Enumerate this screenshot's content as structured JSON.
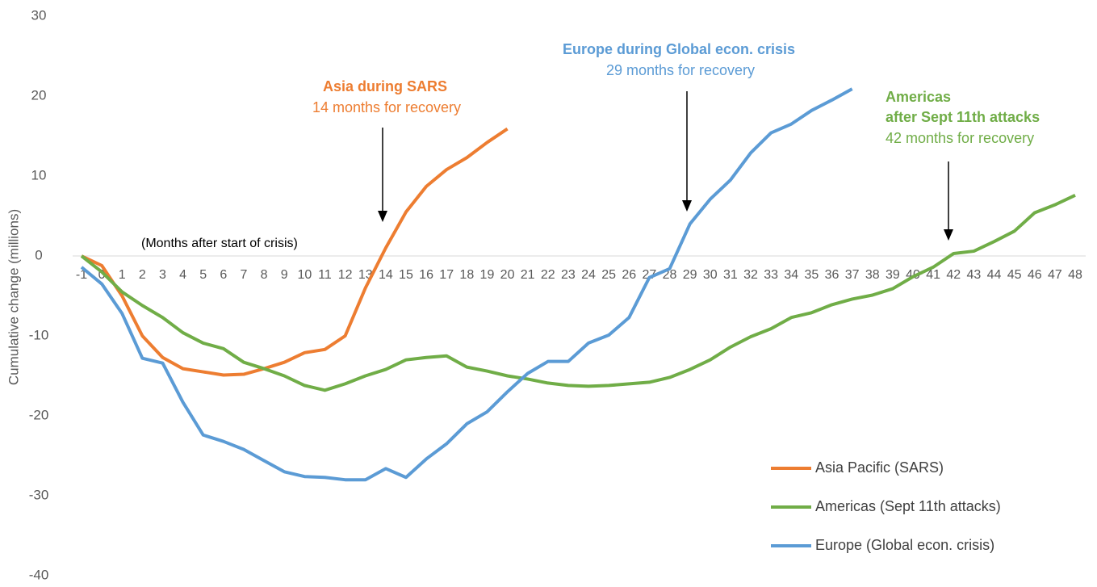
{
  "chart_data": {
    "type": "line",
    "y_axis_label": "Cumulative change (millions)",
    "x_axis_note": "(Months after start of crisis)",
    "x": [
      -1,
      0,
      1,
      2,
      3,
      4,
      5,
      6,
      7,
      8,
      9,
      10,
      11,
      12,
      13,
      14,
      15,
      16,
      17,
      18,
      19,
      20,
      21,
      22,
      23,
      24,
      25,
      26,
      27,
      28,
      29,
      30,
      31,
      32,
      33,
      34,
      35,
      36,
      37,
      38,
      39,
      40,
      41,
      42,
      43,
      44,
      45,
      46,
      47,
      48
    ],
    "xlim": [
      -1,
      48
    ],
    "ylim": [
      -40,
      30
    ],
    "yticks": [
      -40,
      -30,
      -20,
      -10,
      0,
      10,
      20,
      30
    ],
    "legend_position": "lower right",
    "series": [
      {
        "name": "Asia Pacific (SARS)",
        "color": "#ed7d31",
        "values": [
          0,
          -1.2,
          -5,
          -10,
          -12.7,
          -14.1,
          -14.5,
          -14.9,
          -14.8,
          -14.1,
          -13.3,
          -12.1,
          -11.7,
          -10,
          -4,
          1,
          5.5,
          8.7,
          10.8,
          12.3,
          14.2,
          15.9,
          null,
          null,
          null,
          null,
          null,
          null,
          null,
          null,
          null,
          null,
          null,
          null,
          null,
          null,
          null,
          null,
          null,
          null,
          null,
          null,
          null,
          null,
          null,
          null,
          null,
          null,
          null,
          null
        ]
      },
      {
        "name": "Americas (Sept 11th attacks)",
        "color": "#70ad47",
        "values": [
          0,
          -2,
          -4.5,
          -6.2,
          -7.7,
          -9.6,
          -10.9,
          -11.6,
          -13.3,
          -14.1,
          -15,
          -16.2,
          -16.8,
          -16,
          -15,
          -14.2,
          -13,
          -12.7,
          -12.5,
          -13.9,
          -14.4,
          -15,
          -15.4,
          -15.9,
          -16.2,
          -16.3,
          -16.2,
          -16,
          -15.8,
          -15.2,
          -14.2,
          -13,
          -11.4,
          -10.1,
          -9.1,
          -7.7,
          -7.1,
          -6.1,
          -5.4,
          -4.9,
          -4.1,
          -2.6,
          -1.4,
          0.3,
          0.6,
          1.8,
          3.1,
          5.4,
          6.4,
          7.6
        ]
      },
      {
        "name": "Europe (Global econ. crisis)",
        "color": "#5b9bd5",
        "values": [
          -1.4,
          -3.5,
          -7.2,
          -12.8,
          -13.4,
          -18.3,
          -22.4,
          -23.2,
          -24.2,
          -25.6,
          -27,
          -27.6,
          -27.7,
          -28,
          -28,
          -26.6,
          -27.7,
          -25.4,
          -23.5,
          -21,
          -19.5,
          -17,
          -14.7,
          -13.2,
          -13.2,
          -10.9,
          -9.9,
          -7.7,
          -2.7,
          -1.6,
          4,
          7.1,
          9.5,
          12.9,
          15.4,
          16.5,
          18.2,
          19.5,
          20.9,
          null,
          null,
          null,
          null,
          null,
          null,
          null,
          null,
          null,
          null,
          null
        ]
      }
    ],
    "annotations": [
      {
        "lines": [
          "Asia during SARS"
        ],
        "text": "14 months for recovery",
        "color": "#ed7d31"
      },
      {
        "lines": [
          "Europe during Global econ. crisis"
        ],
        "text": "29 months for recovery",
        "color": "#5b9bd5"
      },
      {
        "lines": [
          "Americas",
          "after Sept 11th attacks"
        ],
        "text": "42 months for recovery",
        "color": "#70ad47"
      }
    ]
  }
}
